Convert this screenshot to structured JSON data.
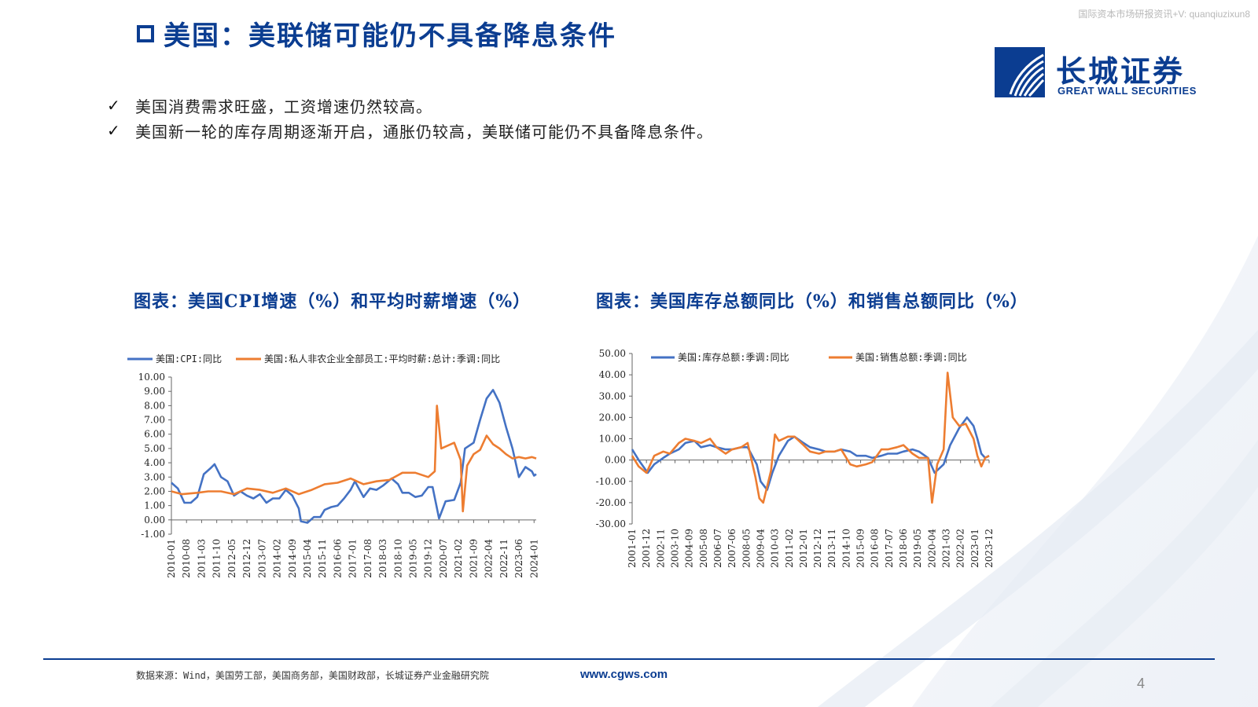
{
  "watermark": "国际资本市场研报资讯+V: quanqiuzixun8",
  "title": "美国：美联储可能仍不具备降息条件",
  "logo": {
    "cn": "长城证券",
    "en": "GREAT WALL SECURITIES"
  },
  "bullets": [
    "美国消费需求旺盛，工资增速仍然较高。",
    "美国新一轮的库存周期逐渐开启，通胀仍较高，美联储可能仍不具备降息条件。"
  ],
  "colors": {
    "blue_series": "#4472c4",
    "orange_series": "#ed7d31",
    "brand": "#0b3d91"
  },
  "chart_data": [
    {
      "type": "line",
      "title": "图表：美国CPI增速（%）和平均时薪增速（%）",
      "x_tick_labels": [
        "2010-01",
        "2010-08",
        "2011-03",
        "2011-10",
        "2012-05",
        "2012-12",
        "2013-07",
        "2014-02",
        "2014-09",
        "2015-04",
        "2015-11",
        "2016-06",
        "2017-01",
        "2017-08",
        "2018-03",
        "2018-10",
        "2019-05",
        "2019-12",
        "2020-07",
        "2021-02",
        "2021-09",
        "2022-04",
        "2022-11",
        "2023-06",
        "2024-01"
      ],
      "x_range": [
        "2010-01",
        "2024-02"
      ],
      "ylim": [
        -1,
        10
      ],
      "y_ticks": [
        -1,
        0,
        1,
        2,
        3,
        4,
        5,
        6,
        7,
        8,
        9,
        10
      ],
      "y_tick_labels": [
        "-1.00",
        "0.00",
        "1.00",
        "2.00",
        "3.00",
        "4.00",
        "5.00",
        "6.00",
        "7.00",
        "8.00",
        "9.00",
        "10.00"
      ],
      "legend": "top",
      "grid": false,
      "series": [
        {
          "name": "美国:CPI:同比",
          "color": "#4472c4",
          "points": [
            [
              "2010-01",
              2.6
            ],
            [
              "2010-04",
              2.2
            ],
            [
              "2010-07",
              1.2
            ],
            [
              "2010-10",
              1.2
            ],
            [
              "2011-01",
              1.6
            ],
            [
              "2011-04",
              3.2
            ],
            [
              "2011-07",
              3.6
            ],
            [
              "2011-09",
              3.9
            ],
            [
              "2011-12",
              3.0
            ],
            [
              "2012-03",
              2.7
            ],
            [
              "2012-06",
              1.7
            ],
            [
              "2012-09",
              2.0
            ],
            [
              "2012-12",
              1.7
            ],
            [
              "2013-03",
              1.5
            ],
            [
              "2013-06",
              1.8
            ],
            [
              "2013-09",
              1.2
            ],
            [
              "2013-12",
              1.5
            ],
            [
              "2014-03",
              1.5
            ],
            [
              "2014-06",
              2.1
            ],
            [
              "2014-09",
              1.7
            ],
            [
              "2014-12",
              0.8
            ],
            [
              "2015-01",
              -0.1
            ],
            [
              "2015-04",
              -0.2
            ],
            [
              "2015-07",
              0.2
            ],
            [
              "2015-10",
              0.2
            ],
            [
              "2015-12",
              0.7
            ],
            [
              "2016-03",
              0.9
            ],
            [
              "2016-06",
              1.0
            ],
            [
              "2016-09",
              1.5
            ],
            [
              "2016-12",
              2.1
            ],
            [
              "2017-02",
              2.7
            ],
            [
              "2017-06",
              1.6
            ],
            [
              "2017-09",
              2.2
            ],
            [
              "2017-12",
              2.1
            ],
            [
              "2018-03",
              2.4
            ],
            [
              "2018-07",
              2.9
            ],
            [
              "2018-10",
              2.5
            ],
            [
              "2018-12",
              1.9
            ],
            [
              "2019-03",
              1.9
            ],
            [
              "2019-06",
              1.6
            ],
            [
              "2019-09",
              1.7
            ],
            [
              "2019-12",
              2.3
            ],
            [
              "2020-02",
              2.3
            ],
            [
              "2020-05",
              0.1
            ],
            [
              "2020-08",
              1.3
            ],
            [
              "2020-12",
              1.4
            ],
            [
              "2021-03",
              2.6
            ],
            [
              "2021-05",
              5.0
            ],
            [
              "2021-09",
              5.4
            ],
            [
              "2021-12",
              7.0
            ],
            [
              "2022-03",
              8.5
            ],
            [
              "2022-06",
              9.1
            ],
            [
              "2022-09",
              8.2
            ],
            [
              "2022-12",
              6.5
            ],
            [
              "2023-03",
              5.0
            ],
            [
              "2023-06",
              3.0
            ],
            [
              "2023-09",
              3.7
            ],
            [
              "2023-12",
              3.4
            ],
            [
              "2024-01",
              3.1
            ],
            [
              "2024-02",
              3.2
            ]
          ]
        },
        {
          "name": "美国:私人非农企业全部员工:平均时薪:总计:季调:同比",
          "color": "#ed7d31",
          "points": [
            [
              "2010-01",
              2.0
            ],
            [
              "2010-06",
              1.8
            ],
            [
              "2011-01",
              1.9
            ],
            [
              "2011-06",
              2.0
            ],
            [
              "2011-12",
              2.0
            ],
            [
              "2012-06",
              1.8
            ],
            [
              "2012-12",
              2.2
            ],
            [
              "2013-06",
              2.1
            ],
            [
              "2013-12",
              1.9
            ],
            [
              "2014-06",
              2.2
            ],
            [
              "2014-12",
              1.8
            ],
            [
              "2015-06",
              2.1
            ],
            [
              "2015-12",
              2.5
            ],
            [
              "2016-06",
              2.6
            ],
            [
              "2016-12",
              2.9
            ],
            [
              "2017-06",
              2.5
            ],
            [
              "2017-12",
              2.7
            ],
            [
              "2018-06",
              2.8
            ],
            [
              "2018-12",
              3.3
            ],
            [
              "2019-06",
              3.3
            ],
            [
              "2019-12",
              3.0
            ],
            [
              "2020-03",
              3.4
            ],
            [
              "2020-04",
              8.0
            ],
            [
              "2020-06",
              5.0
            ],
            [
              "2020-12",
              5.4
            ],
            [
              "2021-03",
              4.2
            ],
            [
              "2021-04",
              0.6
            ],
            [
              "2021-06",
              3.8
            ],
            [
              "2021-09",
              4.6
            ],
            [
              "2021-12",
              4.9
            ],
            [
              "2022-03",
              5.9
            ],
            [
              "2022-06",
              5.3
            ],
            [
              "2022-09",
              5.0
            ],
            [
              "2022-12",
              4.6
            ],
            [
              "2023-03",
              4.3
            ],
            [
              "2023-06",
              4.4
            ],
            [
              "2023-09",
              4.3
            ],
            [
              "2023-12",
              4.4
            ],
            [
              "2024-02",
              4.3
            ]
          ]
        }
      ]
    },
    {
      "type": "line",
      "title": "图表：美国库存总额同比（%）和销售总额同比（%）",
      "x_tick_labels": [
        "2001-01",
        "2001-12",
        "2002-11",
        "2003-10",
        "2004-09",
        "2005-08",
        "2006-07",
        "2007-06",
        "2008-05",
        "2009-04",
        "2010-03",
        "2011-02",
        "2012-01",
        "2012-12",
        "2013-11",
        "2014-10",
        "2015-09",
        "2016-08",
        "2017-07",
        "2018-06",
        "2019-05",
        "2020-04",
        "2021-03",
        "2022-02",
        "2023-01",
        "2023-12"
      ],
      "x_range": [
        "2001-01",
        "2023-12"
      ],
      "ylim": [
        -30,
        50
      ],
      "y_ticks": [
        -30,
        -20,
        -10,
        0,
        10,
        20,
        30,
        40,
        50
      ],
      "y_tick_labels": [
        "-30.00",
        "-20.00",
        "-10.00",
        "0.00",
        "10.00",
        "20.00",
        "30.00",
        "40.00",
        "50.00"
      ],
      "legend": "top",
      "grid": false,
      "series": [
        {
          "name": "美国:库存总额:季调:同比",
          "color": "#4472c4",
          "points": [
            [
              "2001-01",
              5
            ],
            [
              "2001-06",
              0
            ],
            [
              "2002-01",
              -6
            ],
            [
              "2002-06",
              -2
            ],
            [
              "2003-01",
              1
            ],
            [
              "2003-06",
              3
            ],
            [
              "2004-01",
              5
            ],
            [
              "2004-06",
              8
            ],
            [
              "2005-01",
              9
            ],
            [
              "2005-06",
              6
            ],
            [
              "2006-01",
              7
            ],
            [
              "2006-06",
              6
            ],
            [
              "2007-01",
              5
            ],
            [
              "2007-06",
              5
            ],
            [
              "2008-01",
              6
            ],
            [
              "2008-06",
              6
            ],
            [
              "2009-01",
              -2
            ],
            [
              "2009-04",
              -10
            ],
            [
              "2009-09",
              -14
            ],
            [
              "2010-01",
              -6
            ],
            [
              "2010-06",
              2
            ],
            [
              "2011-01",
              9
            ],
            [
              "2011-06",
              11
            ],
            [
              "2012-01",
              8
            ],
            [
              "2012-06",
              6
            ],
            [
              "2013-01",
              5
            ],
            [
              "2013-06",
              4
            ],
            [
              "2014-01",
              4
            ],
            [
              "2014-06",
              5
            ],
            [
              "2015-01",
              4
            ],
            [
              "2015-06",
              2
            ],
            [
              "2016-01",
              2
            ],
            [
              "2016-06",
              1
            ],
            [
              "2017-01",
              2
            ],
            [
              "2017-06",
              3
            ],
            [
              "2018-01",
              3
            ],
            [
              "2018-06",
              4
            ],
            [
              "2019-01",
              5
            ],
            [
              "2019-06",
              4
            ],
            [
              "2020-01",
              1
            ],
            [
              "2020-06",
              -6
            ],
            [
              "2021-01",
              -2
            ],
            [
              "2021-06",
              7
            ],
            [
              "2022-01",
              15
            ],
            [
              "2022-07",
              20
            ],
            [
              "2022-12",
              16
            ],
            [
              "2023-03",
              10
            ],
            [
              "2023-06",
              3
            ],
            [
              "2023-09",
              1
            ],
            [
              "2023-12",
              2
            ]
          ]
        },
        {
          "name": "美国:销售总额:季调:同比",
          "color": "#ed7d31",
          "points": [
            [
              "2001-01",
              2
            ],
            [
              "2001-06",
              -3
            ],
            [
              "2001-12",
              -6
            ],
            [
              "2002-06",
              2
            ],
            [
              "2003-01",
              4
            ],
            [
              "2003-06",
              3
            ],
            [
              "2004-01",
              8
            ],
            [
              "2004-06",
              10
            ],
            [
              "2005-01",
              9
            ],
            [
              "2005-06",
              8
            ],
            [
              "2006-01",
              10
            ],
            [
              "2006-06",
              6
            ],
            [
              "2007-01",
              3
            ],
            [
              "2007-06",
              5
            ],
            [
              "2008-01",
              6
            ],
            [
              "2008-06",
              8
            ],
            [
              "2008-12",
              -8
            ],
            [
              "2009-03",
              -18
            ],
            [
              "2009-06",
              -20
            ],
            [
              "2009-12",
              -5
            ],
            [
              "2010-03",
              12
            ],
            [
              "2010-06",
              9
            ],
            [
              "2011-01",
              11
            ],
            [
              "2011-06",
              11
            ],
            [
              "2012-01",
              7
            ],
            [
              "2012-06",
              4
            ],
            [
              "2013-01",
              3
            ],
            [
              "2013-06",
              4
            ],
            [
              "2014-01",
              4
            ],
            [
              "2014-06",
              5
            ],
            [
              "2015-01",
              -2
            ],
            [
              "2015-06",
              -3
            ],
            [
              "2016-01",
              -2
            ],
            [
              "2016-06",
              -1
            ],
            [
              "2017-01",
              5
            ],
            [
              "2017-06",
              5
            ],
            [
              "2018-01",
              6
            ],
            [
              "2018-06",
              7
            ],
            [
              "2019-01",
              3
            ],
            [
              "2019-06",
              1
            ],
            [
              "2020-01",
              1
            ],
            [
              "2020-04",
              -20
            ],
            [
              "2020-08",
              -2
            ],
            [
              "2021-01",
              5
            ],
            [
              "2021-04",
              41
            ],
            [
              "2021-08",
              20
            ],
            [
              "2022-01",
              16
            ],
            [
              "2022-06",
              17
            ],
            [
              "2022-12",
              10
            ],
            [
              "2023-03",
              2
            ],
            [
              "2023-06",
              -3
            ],
            [
              "2023-09",
              1
            ],
            [
              "2023-12",
              2
            ]
          ]
        }
      ]
    }
  ],
  "chart_titles": [
    "图表：美国CPI增速（%）和平均时薪增速（%）",
    "图表：美国库存总额同比（%）和销售总额同比（%）"
  ],
  "footer": {
    "source": "数据来源：Wind，美国劳工部，美国商务部，美国财政部，长城证券产业金融研究院",
    "url": "www.cgws.com",
    "page": "4"
  }
}
